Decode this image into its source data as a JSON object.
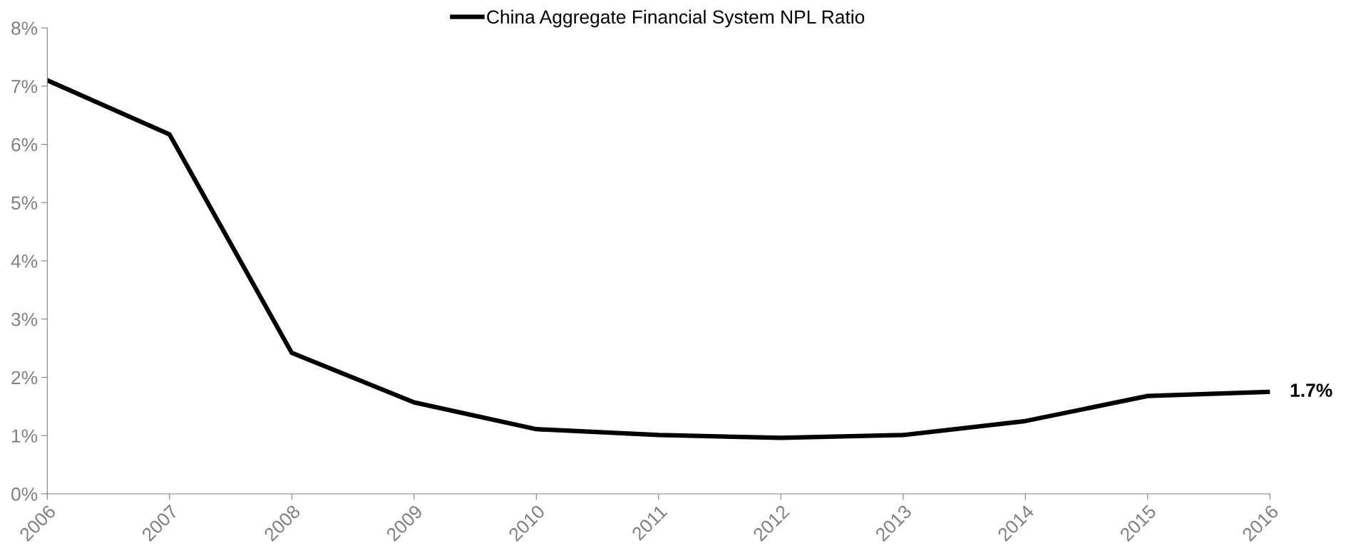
{
  "chart_data": {
    "type": "line",
    "x": [
      2006,
      2007,
      2008,
      2009,
      2010,
      2011,
      2012,
      2013,
      2014,
      2015,
      2016
    ],
    "series": [
      {
        "name": "China Aggregate Financial System NPL Ratio",
        "color": "#000000",
        "values": [
          7.1,
          6.17,
          2.42,
          1.57,
          1.11,
          1.01,
          0.96,
          1.01,
          1.25,
          1.68,
          1.75
        ]
      }
    ],
    "xlim": [
      2006,
      2016
    ],
    "xticks": [
      2006,
      2007,
      2008,
      2009,
      2010,
      2011,
      2012,
      2013,
      2014,
      2015,
      2016
    ],
    "ylim": [
      0,
      8
    ],
    "yticks": [
      {
        "value": 0,
        "label": "0%"
      },
      {
        "value": 1,
        "label": "1%"
      },
      {
        "value": 2,
        "label": "2%"
      },
      {
        "value": 3,
        "label": "3%"
      },
      {
        "value": 4,
        "label": "4%"
      },
      {
        "value": 5,
        "label": "5%"
      },
      {
        "value": 6,
        "label": "6%"
      },
      {
        "value": 7,
        "label": "7%"
      },
      {
        "value": 8,
        "label": "8%"
      }
    ],
    "annotations": [
      {
        "text": "1.7%",
        "x": 2016,
        "y": 1.75
      }
    ],
    "grid": false,
    "legend": "top",
    "marker": "none",
    "line_style": "solid"
  }
}
